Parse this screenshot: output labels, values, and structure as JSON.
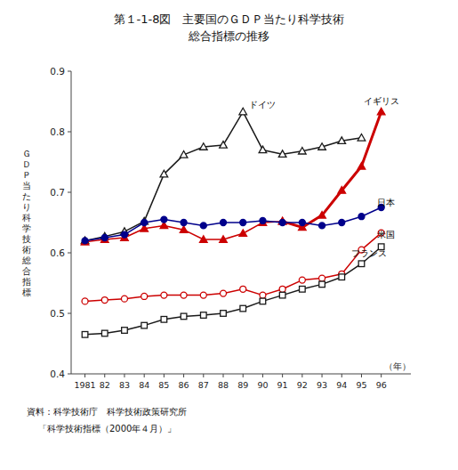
{
  "chart_data": {
    "type": "line",
    "title": "第１-1-8図　主要国のＧＤＰ当たり科学技術",
    "subtitle": "総合指標の推移",
    "ylabel": "Ｇ\nＤ\nＰ\n当\nた\nり\n科\n学\n技\n術\n総\n合\n指\n標",
    "xlabel": "（年）",
    "source": [
      "資料：科学技術庁　科学技術政策研究所",
      "「科学技術指標（2000年４月）」"
    ],
    "x": [
      1981,
      1982,
      1983,
      1984,
      1985,
      1986,
      1987,
      1988,
      1989,
      1990,
      1991,
      1992,
      1993,
      1994,
      1995,
      1996
    ],
    "series": [
      {
        "color": "#1a1a1a",
        "marker": "triangle-open",
        "line_style": "solid",
        "values": [
          0.62,
          0.627,
          0.635,
          0.652,
          0.73,
          0.762,
          0.775,
          0.778,
          0.833,
          0.77,
          0.763,
          0.768,
          0.775,
          0.785,
          0.79,
          null
        ]
      },
      {
        "color": "#cc0000",
        "marker": "triangle",
        "line_style": "solid",
        "x": [
          1981,
          1982,
          1983,
          1984,
          1985,
          1986,
          1987,
          1988,
          1989,
          1990,
          1991
        ],
        "values": [
          0.618,
          0.622,
          0.625,
          0.64,
          0.645,
          0.638,
          0.622,
          0.622,
          0.632,
          0.65,
          0.652
        ]
      },
      {
        "color": "#cc0000",
        "marker": "triangle",
        "line_style": "bold",
        "x": [
          1991,
          1992,
          1993,
          1994,
          1995,
          1996
        ],
        "values": [
          0.652,
          0.642,
          0.662,
          0.703,
          0.743,
          0.833
        ]
      },
      {
        "color": "#00008B",
        "marker": "circle",
        "line_style": "solid",
        "values": [
          0.62,
          0.625,
          0.63,
          0.65,
          0.655,
          0.65,
          0.645,
          0.65,
          0.65,
          0.653,
          0.65,
          0.65,
          0.645,
          0.65,
          0.66,
          0.675
        ]
      },
      {
        "color": "#cc0000",
        "marker": "circle-open",
        "line_style": "solid",
        "values": [
          0.52,
          0.522,
          0.524,
          0.528,
          0.53,
          0.53,
          0.53,
          0.533,
          0.54,
          0.53,
          0.54,
          0.555,
          0.558,
          0.565,
          0.605,
          0.633
        ]
      },
      {
        "color": "#1a1a1a",
        "marker": "square-open",
        "line_style": "solid",
        "values": [
          0.465,
          0.467,
          0.472,
          0.48,
          0.49,
          0.495,
          0.497,
          0.5,
          0.508,
          0.52,
          0.53,
          0.54,
          0.548,
          0.56,
          0.582,
          0.61
        ]
      }
    ],
    "annotations": [
      {
        "text": "ドイツ",
        "x": 1989.3,
        "y": 0.84
      },
      {
        "text": "イギリス",
        "x": 1995.1,
        "y": 0.845
      },
      {
        "text": "日本",
        "x": 1995.8,
        "y": 0.678
      },
      {
        "text": "米国",
        "x": 1995.8,
        "y": 0.625
      },
      {
        "text": "フランス",
        "x": 1994.5,
        "y": 0.594
      }
    ],
    "xlim": [
      1980.3,
      1997.5
    ],
    "ylim": [
      0.4,
      0.9
    ],
    "xticks": [
      1981,
      {
        "value": 1982,
        "label": "82"
      },
      {
        "value": 1983,
        "label": "83"
      },
      {
        "value": 1984,
        "label": "84"
      },
      {
        "value": 1985,
        "label": "85"
      },
      {
        "value": 1986,
        "label": "86"
      },
      {
        "value": 1987,
        "label": "87"
      },
      {
        "value": 1988,
        "label": "88"
      },
      {
        "value": 1989,
        "label": "89"
      },
      {
        "value": 1990,
        "label": "90"
      },
      {
        "value": 1991,
        "label": "91"
      },
      {
        "value": 1992,
        "label": "92"
      },
      {
        "value": 1993,
        "label": "93"
      },
      {
        "value": 1994,
        "label": "94"
      },
      {
        "value": 1995,
        "label": "95"
      },
      {
        "value": 1996,
        "label": "96"
      }
    ],
    "yticks": [
      0.4,
      0.5,
      0.6,
      0.7,
      0.8,
      0.9
    ],
    "grid": false
  }
}
